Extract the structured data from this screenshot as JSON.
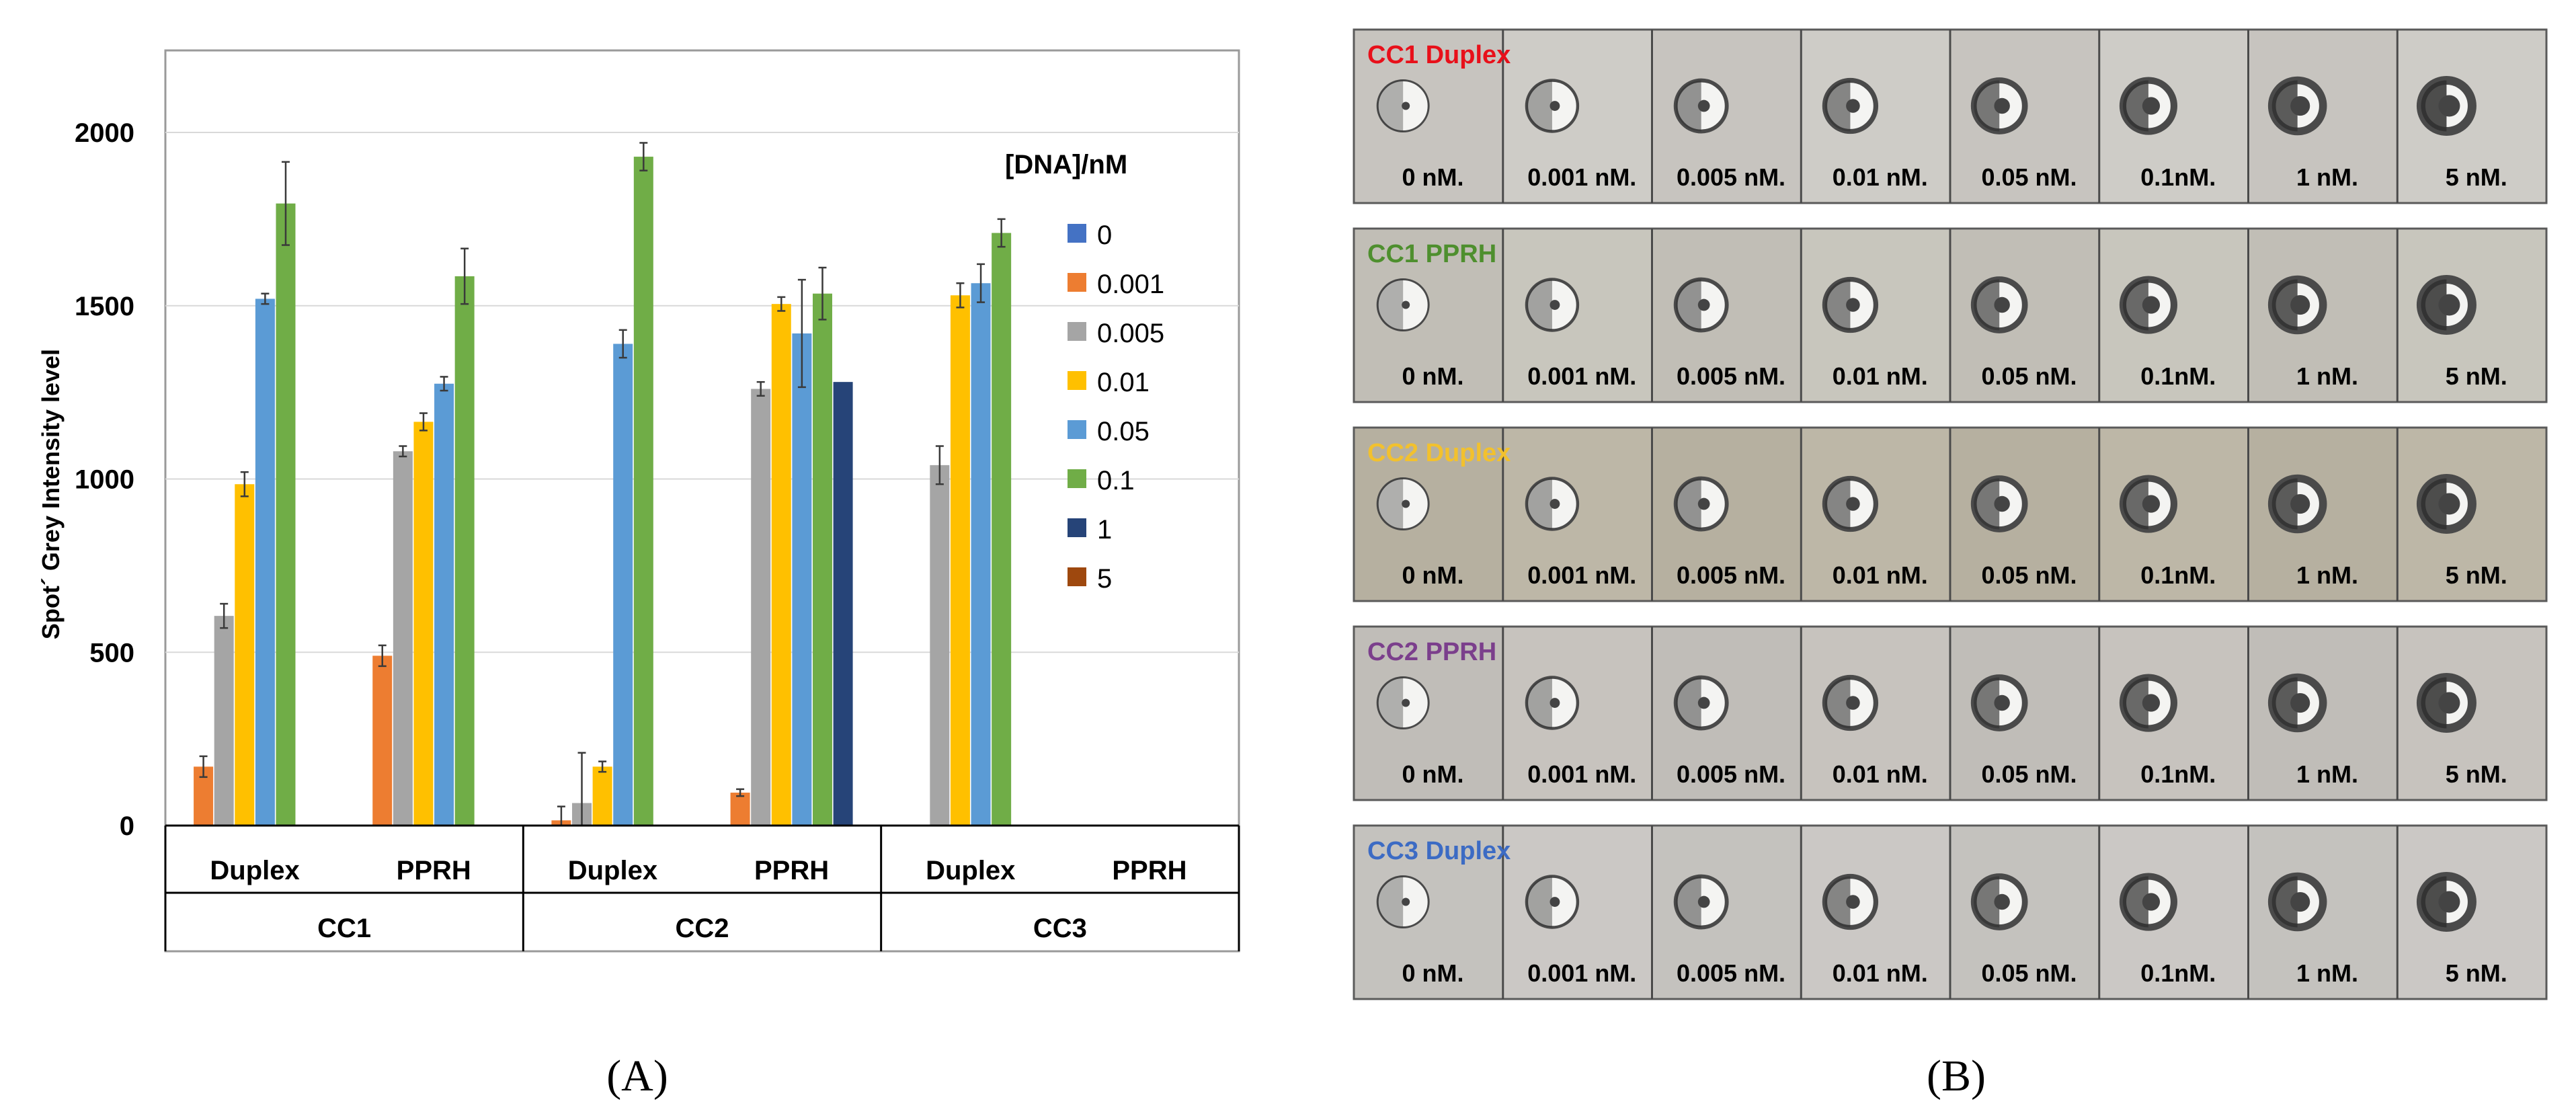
{
  "chart_data": {
    "type": "bar",
    "ylabel": "Spot´ Grey Intensity level",
    "ylim": [
      0,
      2000
    ],
    "yticks": [
      0,
      500,
      1000,
      1500,
      2000
    ],
    "grid": true,
    "legend_title": "[DNA]/nM",
    "legend_position": "right",
    "groups": [
      {
        "label": "CC1",
        "categories": [
          "Duplex",
          "PPRH"
        ]
      },
      {
        "label": "CC2",
        "categories": [
          "Duplex",
          "PPRH"
        ]
      },
      {
        "label": "CC3",
        "categories": [
          "Duplex",
          "PPRH"
        ]
      }
    ],
    "categories": [
      "CC1 Duplex",
      "CC1 PPRH",
      "CC2 Duplex",
      "CC2 PPRH",
      "CC3 Duplex",
      "CC3 PPRH"
    ],
    "series": [
      {
        "name": "0",
        "color": "#4472C4",
        "values": [
          0,
          0,
          0,
          0,
          0,
          0
        ],
        "errors": [
          0,
          0,
          0,
          0,
          0,
          0
        ]
      },
      {
        "name": "0.001",
        "color": "#ED7D31",
        "values": [
          170,
          490,
          15,
          95,
          0,
          0
        ],
        "errors": [
          30,
          30,
          40,
          10,
          0,
          0
        ]
      },
      {
        "name": "0.005",
        "color": "#A5A5A5",
        "values": [
          605,
          1080,
          65,
          1260,
          1040,
          0
        ],
        "errors": [
          35,
          15,
          145,
          20,
          55,
          0
        ]
      },
      {
        "name": "0.01",
        "color": "#FFC000",
        "values": [
          985,
          1165,
          170,
          1505,
          1530,
          0
        ],
        "errors": [
          35,
          25,
          15,
          20,
          35,
          0
        ]
      },
      {
        "name": "0.05",
        "color": "#5B9BD5",
        "values": [
          1520,
          1275,
          1390,
          1420,
          1565,
          0
        ],
        "errors": [
          15,
          20,
          40,
          155,
          55,
          0
        ]
      },
      {
        "name": "0.1",
        "color": "#70AD47",
        "values": [
          1795,
          1585,
          1930,
          1535,
          1710,
          0
        ],
        "errors": [
          120,
          80,
          40,
          75,
          40,
          0
        ]
      },
      {
        "name": "1",
        "color": "#264478",
        "values": [
          0,
          0,
          0,
          1280,
          0,
          0
        ],
        "errors": [
          0,
          0,
          0,
          0,
          0,
          0
        ]
      },
      {
        "name": "5",
        "color": "#9E480E",
        "values": [
          0,
          0,
          0,
          0,
          0,
          0
        ],
        "errors": [
          0,
          0,
          0,
          0,
          0,
          0
        ]
      }
    ]
  },
  "panel_a_label": "(A)",
  "panel_b_label": "(B)",
  "photo_panel": {
    "strips": [
      {
        "title": "CC1 Duplex",
        "title_color": "#E8101A",
        "labels": [
          "0 nM.",
          "0.001 nM.",
          "0.005 nM.",
          "0.01 nM.",
          "0.05 nM.",
          "0.1nM.",
          "1 nM.",
          "5 nM."
        ]
      },
      {
        "title": "CC1 PPRH",
        "title_color": "#4E8F2E",
        "labels": [
          "0 nM.",
          "0.001 nM.",
          "0.005 nM.",
          "0.01 nM.",
          "0.05 nM.",
          "0.1nM.",
          "1 nM.",
          "5 nM."
        ]
      },
      {
        "title": "CC2 Duplex",
        "title_color": "#F2C12E",
        "labels": [
          "0 nM.",
          "0.001 nM.",
          "0.005 nM.",
          "0.01 nM.",
          "0.05 nM.",
          "0.1nM.",
          "1 nM.",
          "5 nM."
        ]
      },
      {
        "title": "CC2 PPRH",
        "title_color": "#7B3F8C",
        "labels": [
          "0 nM.",
          "0.001 nM.",
          "0.005 nM.",
          "0.01 nM.",
          "0.05 nM.",
          "0.1nM.",
          "1 nM.",
          "5 nM."
        ]
      },
      {
        "title": "CC3 Duplex",
        "title_color": "#3C6BC4",
        "labels": [
          "0 nM.",
          "0.001 nM.",
          "0.005 nM.",
          "0.01 nM.",
          "0.05 nM.",
          "0.1nM.",
          "1 nM.",
          "5 nM."
        ]
      }
    ]
  }
}
